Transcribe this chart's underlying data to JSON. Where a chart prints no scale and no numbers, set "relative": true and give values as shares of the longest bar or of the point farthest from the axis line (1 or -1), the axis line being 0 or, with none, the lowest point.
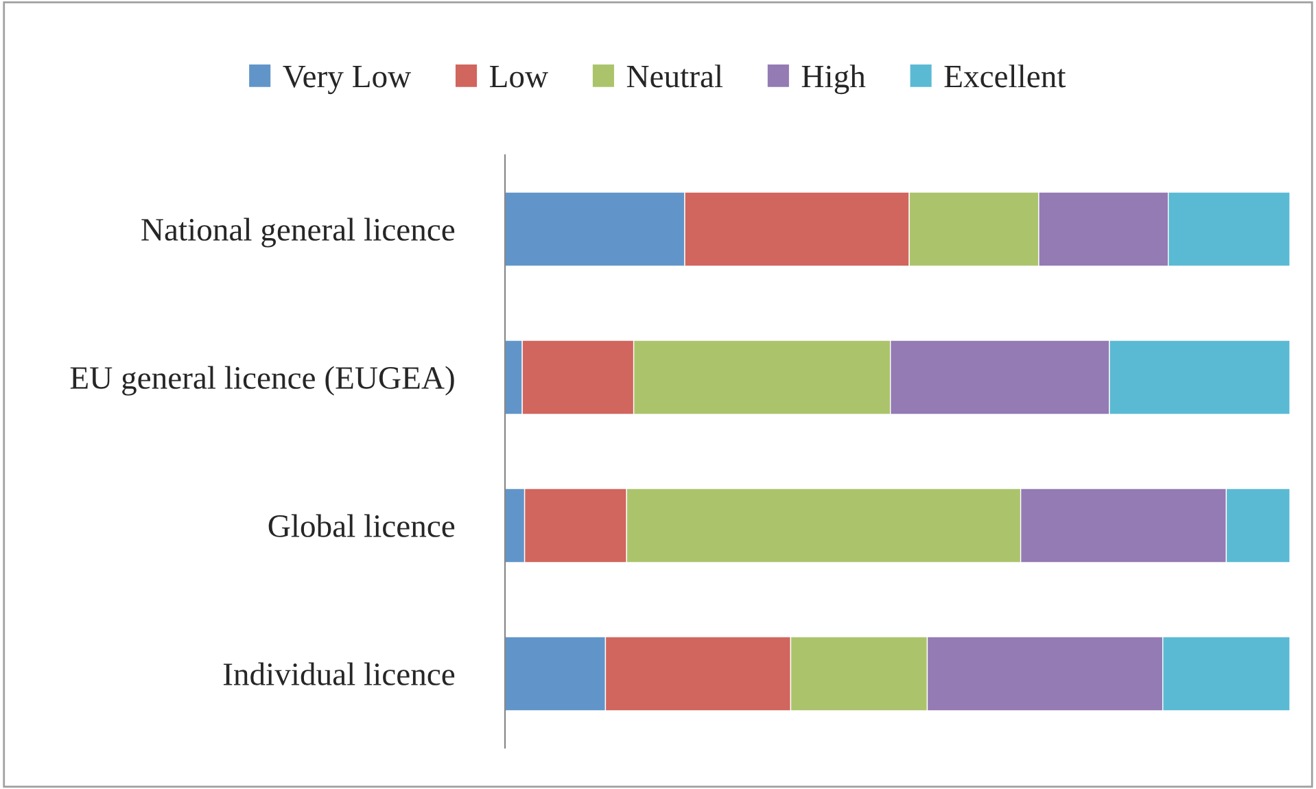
{
  "chart_data": {
    "type": "bar",
    "orientation": "horizontal",
    "stacked": true,
    "relative": true,
    "legend": "top",
    "categories": [
      "National general licence",
      "EU general licence (EUGEA)",
      "Global licence",
      "Individual licence"
    ],
    "series": [
      {
        "name": "Very Low",
        "color": "#6195c9",
        "values": [
          0.229,
          0.022,
          0.025,
          0.128
        ]
      },
      {
        "name": "Low",
        "color": "#d0665e",
        "values": [
          0.286,
          0.142,
          0.13,
          0.236
        ]
      },
      {
        "name": "Neutral",
        "color": "#abc46c",
        "values": [
          0.165,
          0.327,
          0.502,
          0.174
        ]
      },
      {
        "name": "High",
        "color": "#947bb3",
        "values": [
          0.165,
          0.279,
          0.262,
          0.3
        ]
      },
      {
        "name": "Excellent",
        "color": "#5bbad3",
        "values": [
          0.155,
          0.23,
          0.081,
          0.162
        ]
      }
    ]
  }
}
